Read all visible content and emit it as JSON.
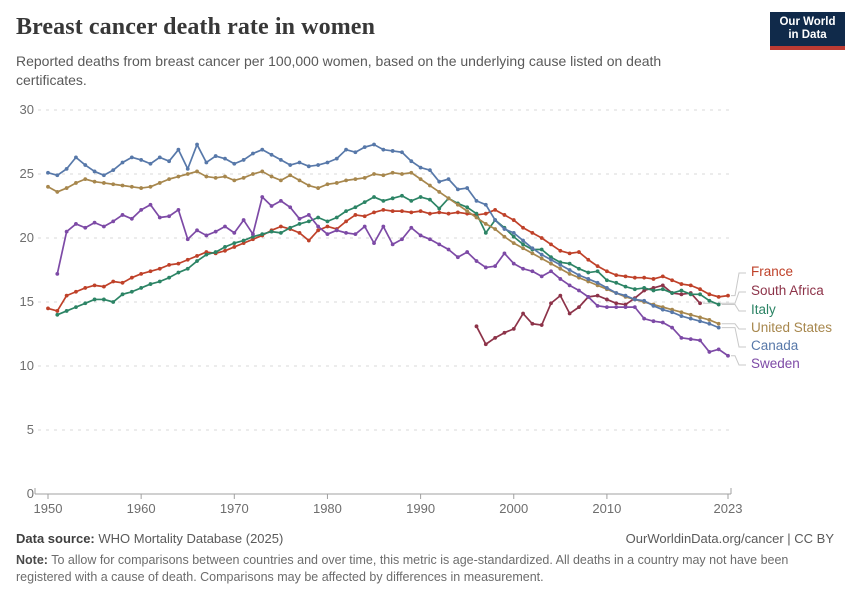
{
  "header": {
    "title": "Breast cancer death rate in women",
    "subtitle": "Reported deaths from breast cancer per 100,000 women, based on the underlying cause listed on death certificates.",
    "logo_line1": "Our World",
    "logo_line2": "in Data",
    "logo_bg": "#102a4a",
    "logo_accent": "#bc3b33"
  },
  "footer": {
    "source_label": "Data source:",
    "source_value": " WHO Mortality Database (2025)",
    "attribution": "OurWorldinData.org/cancer | CC BY",
    "note_label": "Note:",
    "note_text": " To allow for comparisons between countries and over time, this metric is age-standardized. All deaths in a country may not have been registered with a cause of death. Comparisons may be affected by differences in measurement."
  },
  "chart_data": {
    "type": "line",
    "title": "Breast cancer death rate in women",
    "xlabel": "",
    "ylabel": "",
    "xlim": [
      1950,
      2023
    ],
    "ylim": [
      0,
      30
    ],
    "grid": "horizontal dashed",
    "legend_position": "right",
    "x_ticks": [
      "1950",
      "1960",
      "1970",
      "1980",
      "1990",
      "2000",
      "2010",
      "2023"
    ],
    "x_tick_values": [
      1950,
      1960,
      1970,
      1980,
      1990,
      2000,
      2010,
      2023
    ],
    "y_ticks": [
      "0",
      "5",
      "10",
      "15",
      "20",
      "25",
      "30"
    ],
    "y_tick_values": [
      0,
      5,
      10,
      15,
      20,
      25,
      30
    ],
    "series": [
      {
        "name": "France",
        "color": "#bf4129",
        "start_year": 1950,
        "end_year": 2023,
        "values": [
          14.5,
          14.3,
          15.5,
          15.8,
          16.1,
          16.3,
          16.2,
          16.6,
          16.5,
          16.9,
          17.2,
          17.4,
          17.6,
          17.9,
          18.0,
          18.3,
          18.6,
          18.9,
          18.8,
          19.0,
          19.3,
          19.6,
          19.9,
          20.2,
          20.6,
          20.9,
          20.7,
          20.4,
          19.8,
          20.6,
          20.9,
          20.7,
          21.3,
          21.8,
          21.7,
          22.0,
          22.2,
          22.1,
          22.1,
          22.0,
          22.1,
          21.9,
          22.0,
          21.9,
          22.0,
          21.9,
          21.8,
          21.9,
          22.2,
          21.8,
          21.4,
          20.8,
          20.4,
          20.0,
          19.5,
          19.0,
          18.8,
          18.9,
          18.3,
          17.8,
          17.4,
          17.1,
          17.0,
          16.9,
          16.9,
          16.8,
          17.0,
          16.7,
          16.4,
          16.3,
          16.0,
          15.6,
          15.4,
          15.5
        ]
      },
      {
        "name": "South Africa",
        "color": "#8d3349",
        "start_year": 1996,
        "end_year": 2020,
        "values": [
          13.1,
          11.7,
          12.2,
          12.6,
          12.9,
          14.1,
          13.3,
          13.2,
          14.9,
          15.5,
          14.1,
          14.6,
          15.4,
          15.5,
          15.2,
          14.9,
          14.8,
          15.3,
          15.9,
          16.1,
          16.3,
          15.7,
          15.6,
          15.7,
          14.9
        ]
      },
      {
        "name": "Italy",
        "color": "#2c8465",
        "start_year": 1951,
        "end_year": 2022,
        "values": [
          14.0,
          14.3,
          14.6,
          14.9,
          15.2,
          15.2,
          15.0,
          15.6,
          15.8,
          16.1,
          16.4,
          16.6,
          16.9,
          17.3,
          17.6,
          18.2,
          18.7,
          18.9,
          19.3,
          19.6,
          19.8,
          20.1,
          20.3,
          20.5,
          20.4,
          20.8,
          21.1,
          21.3,
          21.6,
          21.3,
          21.6,
          22.1,
          22.4,
          22.8,
          23.2,
          22.9,
          23.1,
          23.3,
          22.9,
          23.2,
          23.0,
          22.3,
          23.1,
          22.7,
          22.4,
          21.9,
          20.4,
          21.4,
          20.8,
          20.1,
          19.5,
          19.1,
          19.1,
          18.5,
          18.1,
          18.0,
          17.6,
          17.3,
          17.4,
          16.7,
          16.5,
          16.2,
          16.0,
          16.1,
          15.9,
          16.0,
          15.7,
          15.9,
          15.6,
          15.6,
          15.1,
          14.8
        ]
      },
      {
        "name": "United States",
        "color": "#a7874d",
        "start_year": 1950,
        "end_year": 2022,
        "values": [
          24.0,
          23.6,
          23.9,
          24.3,
          24.6,
          24.4,
          24.3,
          24.2,
          24.1,
          24.0,
          23.9,
          24.0,
          24.3,
          24.6,
          24.8,
          25.0,
          25.2,
          24.8,
          24.7,
          24.8,
          24.5,
          24.7,
          25.0,
          25.2,
          24.8,
          24.5,
          24.9,
          24.5,
          24.1,
          23.9,
          24.2,
          24.3,
          24.5,
          24.6,
          24.7,
          25.0,
          24.9,
          25.1,
          25.0,
          25.1,
          24.6,
          24.1,
          23.6,
          23.1,
          22.6,
          22.1,
          21.6,
          21.1,
          20.7,
          20.1,
          19.6,
          19.2,
          18.8,
          18.4,
          18.0,
          17.6,
          17.2,
          16.9,
          16.6,
          16.3,
          16.0,
          15.7,
          15.4,
          15.2,
          15.0,
          14.8,
          14.6,
          14.4,
          14.2,
          14.0,
          13.8,
          13.6,
          13.3
        ]
      },
      {
        "name": "Canada",
        "color": "#5778a9",
        "start_year": 1950,
        "end_year": 2022,
        "values": [
          25.1,
          24.9,
          25.4,
          26.3,
          25.7,
          25.2,
          24.9,
          25.3,
          25.9,
          26.3,
          26.1,
          25.8,
          26.3,
          26.0,
          26.9,
          25.4,
          27.3,
          25.9,
          26.4,
          26.2,
          25.8,
          26.1,
          26.6,
          26.9,
          26.5,
          26.1,
          25.7,
          25.9,
          25.6,
          25.7,
          25.9,
          26.2,
          26.9,
          26.7,
          27.1,
          27.3,
          26.9,
          26.8,
          26.7,
          26.0,
          25.5,
          25.3,
          24.4,
          24.6,
          23.8,
          23.9,
          22.9,
          22.6,
          21.4,
          20.7,
          20.4,
          19.8,
          19.2,
          18.7,
          18.3,
          17.9,
          17.5,
          17.1,
          16.8,
          16.5,
          16.1,
          15.7,
          15.5,
          15.2,
          15.1,
          14.7,
          14.4,
          14.2,
          13.9,
          13.7,
          13.5,
          13.3,
          13.0
        ]
      },
      {
        "name": "Sweden",
        "color": "#7d4aa6",
        "start_year": 1951,
        "end_year": 2023,
        "values": [
          17.2,
          20.5,
          21.1,
          20.8,
          21.2,
          20.9,
          21.3,
          21.8,
          21.5,
          22.2,
          22.6,
          21.6,
          21.7,
          22.2,
          19.9,
          20.6,
          20.2,
          20.5,
          20.9,
          20.4,
          21.4,
          20.3,
          23.2,
          22.5,
          22.9,
          22.4,
          21.5,
          21.8,
          20.9,
          20.3,
          20.6,
          20.4,
          20.3,
          20.9,
          19.6,
          20.9,
          19.5,
          19.9,
          20.8,
          20.2,
          19.9,
          19.5,
          19.1,
          18.5,
          18.9,
          18.2,
          17.7,
          17.8,
          18.8,
          18.0,
          17.6,
          17.4,
          17.0,
          17.4,
          16.8,
          16.3,
          15.9,
          15.4,
          14.7,
          14.6,
          14.6,
          14.6,
          14.6,
          13.7,
          13.5,
          13.4,
          13.0,
          12.2,
          12.1,
          12.0,
          11.1,
          11.3,
          10.8
        ]
      }
    ]
  }
}
